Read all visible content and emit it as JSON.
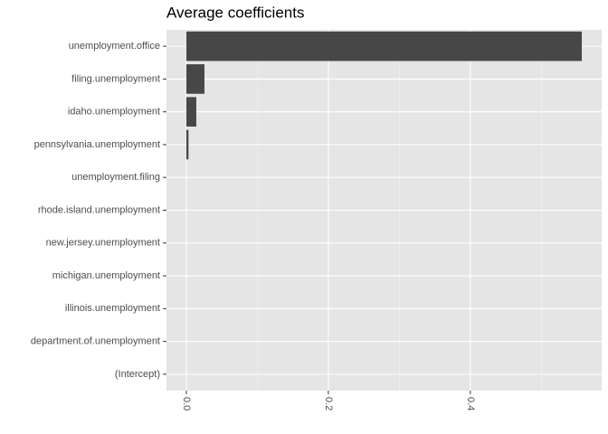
{
  "chart_data": {
    "type": "bar",
    "orientation": "horizontal",
    "title": "Average coefficients",
    "categories": [
      "unemployment.office",
      "filing.unemployment",
      "idaho.unemployment",
      "pennsylvania.unemployment",
      "unemployment.filing",
      "rhode.island.unemployment",
      "new.jersey.unemployment",
      "michigan.unemployment",
      "illinois.unemployment",
      "department.of.unemployment",
      "(Intercept)"
    ],
    "values": [
      0.557,
      0.0255,
      0.014,
      0.003,
      0,
      0,
      0,
      0,
      0,
      0,
      0
    ],
    "color": "#474747",
    "xlim": [
      -0.028,
      0.585
    ],
    "xticks": [
      {
        "value": 0,
        "label": "0.0"
      },
      0.2,
      0.4
    ],
    "minor_grid": [
      0.1,
      0.3,
      0.5
    ],
    "grid": true
  }
}
